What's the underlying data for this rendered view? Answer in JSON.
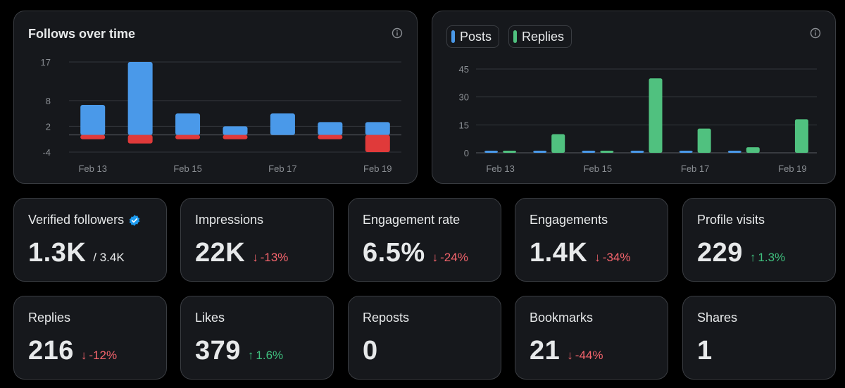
{
  "follows_card": {
    "title": "Follows over time",
    "info_icon": "info-icon"
  },
  "posts_card": {
    "legend": [
      {
        "label": "Posts",
        "color": "#4a99e9"
      },
      {
        "label": "Replies",
        "color": "#50c17f"
      }
    ],
    "info_icon": "info-icon"
  },
  "chart_data": [
    {
      "type": "bar",
      "title": "Follows over time",
      "x_tick_labels": [
        "Feb 13",
        "Feb 15",
        "Feb 17",
        "Feb 19"
      ],
      "y_tick_labels": [
        "17",
        "8",
        "2",
        "-4"
      ],
      "ylim": [
        -4,
        17
      ],
      "grid": true,
      "series": [
        {
          "color": "#4a99e9",
          "values": [
            7,
            17,
            5,
            2,
            5,
            3,
            3
          ]
        },
        {
          "color": "#e03a3a",
          "values": [
            -1,
            -2,
            -1,
            -1,
            0,
            -1,
            -4
          ]
        }
      ]
    },
    {
      "type": "bar",
      "legend_position": "top-left",
      "x_tick_labels": [
        "Feb 13",
        "Feb 15",
        "Feb 17",
        "Feb 19"
      ],
      "y_tick_labels": [
        "45",
        "30",
        "15",
        "0"
      ],
      "ylim": [
        0,
        45
      ],
      "grid": true,
      "series": [
        {
          "name": "Posts",
          "color": "#4a99e9",
          "values": [
            1,
            1,
            1,
            1,
            1,
            1,
            0
          ]
        },
        {
          "name": "Replies",
          "color": "#50c17f",
          "values": [
            0.5,
            10,
            0.5,
            40,
            13,
            3,
            18
          ]
        }
      ]
    }
  ],
  "stats": [
    {
      "label": "Verified followers",
      "value": "1.3K",
      "sub": "/ 3.4K",
      "delta": "",
      "direction": "",
      "verified": true
    },
    {
      "label": "Impressions",
      "value": "22K",
      "delta": "-13%",
      "direction": "down"
    },
    {
      "label": "Engagement rate",
      "value": "6.5%",
      "delta": "-24%",
      "direction": "down"
    },
    {
      "label": "Engagements",
      "value": "1.4K",
      "delta": "-34%",
      "direction": "down"
    },
    {
      "label": "Profile visits",
      "value": "229",
      "delta": "1.3%",
      "direction": "up"
    },
    {
      "label": "Replies",
      "value": "216",
      "delta": "-12%",
      "direction": "down"
    },
    {
      "label": "Likes",
      "value": "379",
      "delta": "1.6%",
      "direction": "up"
    },
    {
      "label": "Reposts",
      "value": "0",
      "delta": "",
      "direction": ""
    },
    {
      "label": "Bookmarks",
      "value": "21",
      "delta": "-44%",
      "direction": "down"
    },
    {
      "label": "Shares",
      "value": "1",
      "delta": "",
      "direction": ""
    }
  ],
  "arrows": {
    "down": "↓",
    "up": "↑"
  }
}
